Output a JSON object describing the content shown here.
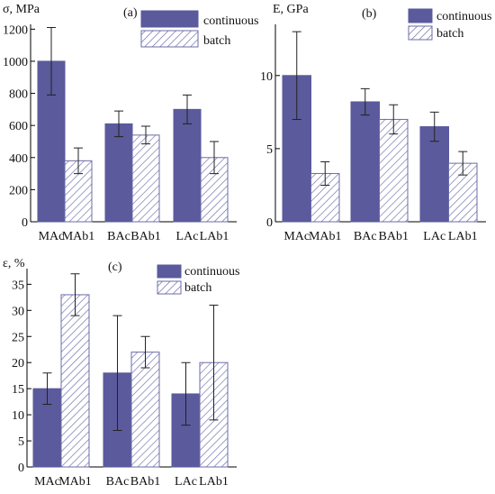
{
  "chart_data": [
    {
      "type": "bar",
      "panel": "(a)",
      "ylabel": "σ, MPa",
      "categories": [
        "MAc",
        "MAb1",
        "BAc",
        "BAb1",
        "LAc",
        "LAb1"
      ],
      "series": [
        {
          "name": "continuous",
          "color": "#5a5a9c",
          "pattern": "solid",
          "values": [
            1000,
            null,
            610,
            null,
            700,
            null
          ],
          "errors": [
            210,
            null,
            80,
            null,
            90,
            null
          ]
        },
        {
          "name": "batch",
          "color": "#6b6ba8",
          "pattern": "hatch",
          "values": [
            null,
            380,
            null,
            540,
            null,
            400
          ],
          "errors": [
            null,
            80,
            null,
            55,
            null,
            100
          ]
        }
      ],
      "ylim": [
        0,
        1230
      ],
      "yticks": [
        0,
        200,
        400,
        600,
        800,
        1000,
        1200
      ]
    },
    {
      "type": "bar",
      "panel": "(b)",
      "ylabel": "E, GPa",
      "categories": [
        "MAc",
        "MAb1",
        "BAc",
        "BAb1",
        "LAc",
        "LAb1"
      ],
      "series": [
        {
          "name": "continuous",
          "color": "#5a5a9c",
          "pattern": "solid",
          "values": [
            10,
            null,
            8.2,
            null,
            6.5,
            null
          ],
          "errors": [
            3,
            null,
            0.9,
            null,
            1,
            null
          ]
        },
        {
          "name": "batch",
          "color": "#6b6ba8",
          "pattern": "hatch",
          "values": [
            null,
            3.3,
            null,
            7,
            null,
            4
          ],
          "errors": [
            null,
            0.8,
            null,
            1,
            null,
            0.8
          ]
        }
      ],
      "ylim": [
        0,
        13.5
      ],
      "yticks": [
        0,
        5,
        10
      ]
    },
    {
      "type": "bar",
      "panel": "(c)",
      "ylabel": "ε, %",
      "categories": [
        "MAc",
        "MAb1",
        "BAc",
        "BAb1",
        "LAc",
        "LAb1"
      ],
      "series": [
        {
          "name": "continuous",
          "color": "#5a5a9c",
          "pattern": "solid",
          "values": [
            15,
            null,
            18,
            null,
            14,
            null
          ],
          "errors": [
            3,
            null,
            11,
            null,
            6,
            null
          ]
        },
        {
          "name": "batch",
          "color": "#6b6ba8",
          "pattern": "hatch",
          "values": [
            null,
            33,
            null,
            22,
            null,
            20
          ],
          "errors": [
            null,
            4,
            null,
            3,
            null,
            11
          ]
        }
      ],
      "ylim": [
        0,
        38
      ],
      "yticks": [
        0,
        5,
        10,
        15,
        20,
        25,
        30,
        35
      ]
    }
  ]
}
